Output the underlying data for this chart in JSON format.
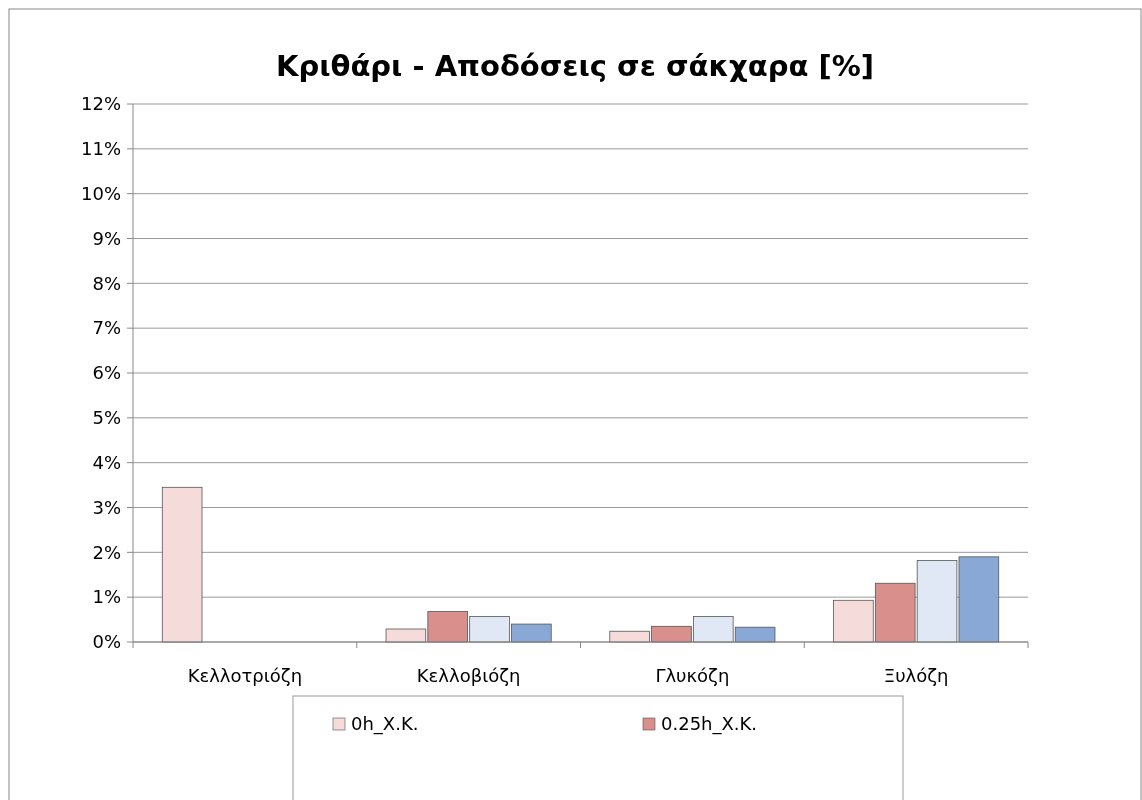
{
  "chart_data": {
    "type": "bar",
    "title": "Κριθάρι - Αποδόσεις σε σάκχαρα [%]",
    "categories": [
      "Κελλοτριόζη",
      "Κελλοβιόζη",
      "Γλυκόζη",
      "Ξυλόζη"
    ],
    "series": [
      {
        "name": "0h_X.K.",
        "color": "#f5dcda",
        "values": [
          3.45,
          0.29,
          0.24,
          0.93
        ]
      },
      {
        "name": "0.25h_X.K.",
        "color": "#d98f8c",
        "values": [
          0,
          0.68,
          0.35,
          1.31
        ]
      },
      {
        "color": "#dfe8f4",
        "values": [
          0,
          0.57,
          0.57,
          1.82
        ]
      },
      {
        "color": "#8aa8d6",
        "values": [
          0,
          0.4,
          0.33,
          1.9
        ]
      }
    ],
    "ylim": [
      0,
      12
    ],
    "yticks": [
      {
        "value": 0,
        "label": "0%"
      },
      {
        "value": 1,
        "label": "1%"
      },
      {
        "value": 2,
        "label": "2%"
      },
      {
        "value": 3,
        "label": "3%"
      },
      {
        "value": 4,
        "label": "4%"
      },
      {
        "value": 5,
        "label": "5%"
      },
      {
        "value": 6,
        "label": "6%"
      },
      {
        "value": 7,
        "label": "7%"
      },
      {
        "value": 8,
        "label": "8%"
      },
      {
        "value": 9,
        "label": "9%"
      },
      {
        "value": 10,
        "label": "10%"
      },
      {
        "value": 11,
        "label": "11%"
      },
      {
        "value": 12,
        "label": "12%"
      }
    ],
    "grid": "y",
    "legend": "bottom"
  }
}
